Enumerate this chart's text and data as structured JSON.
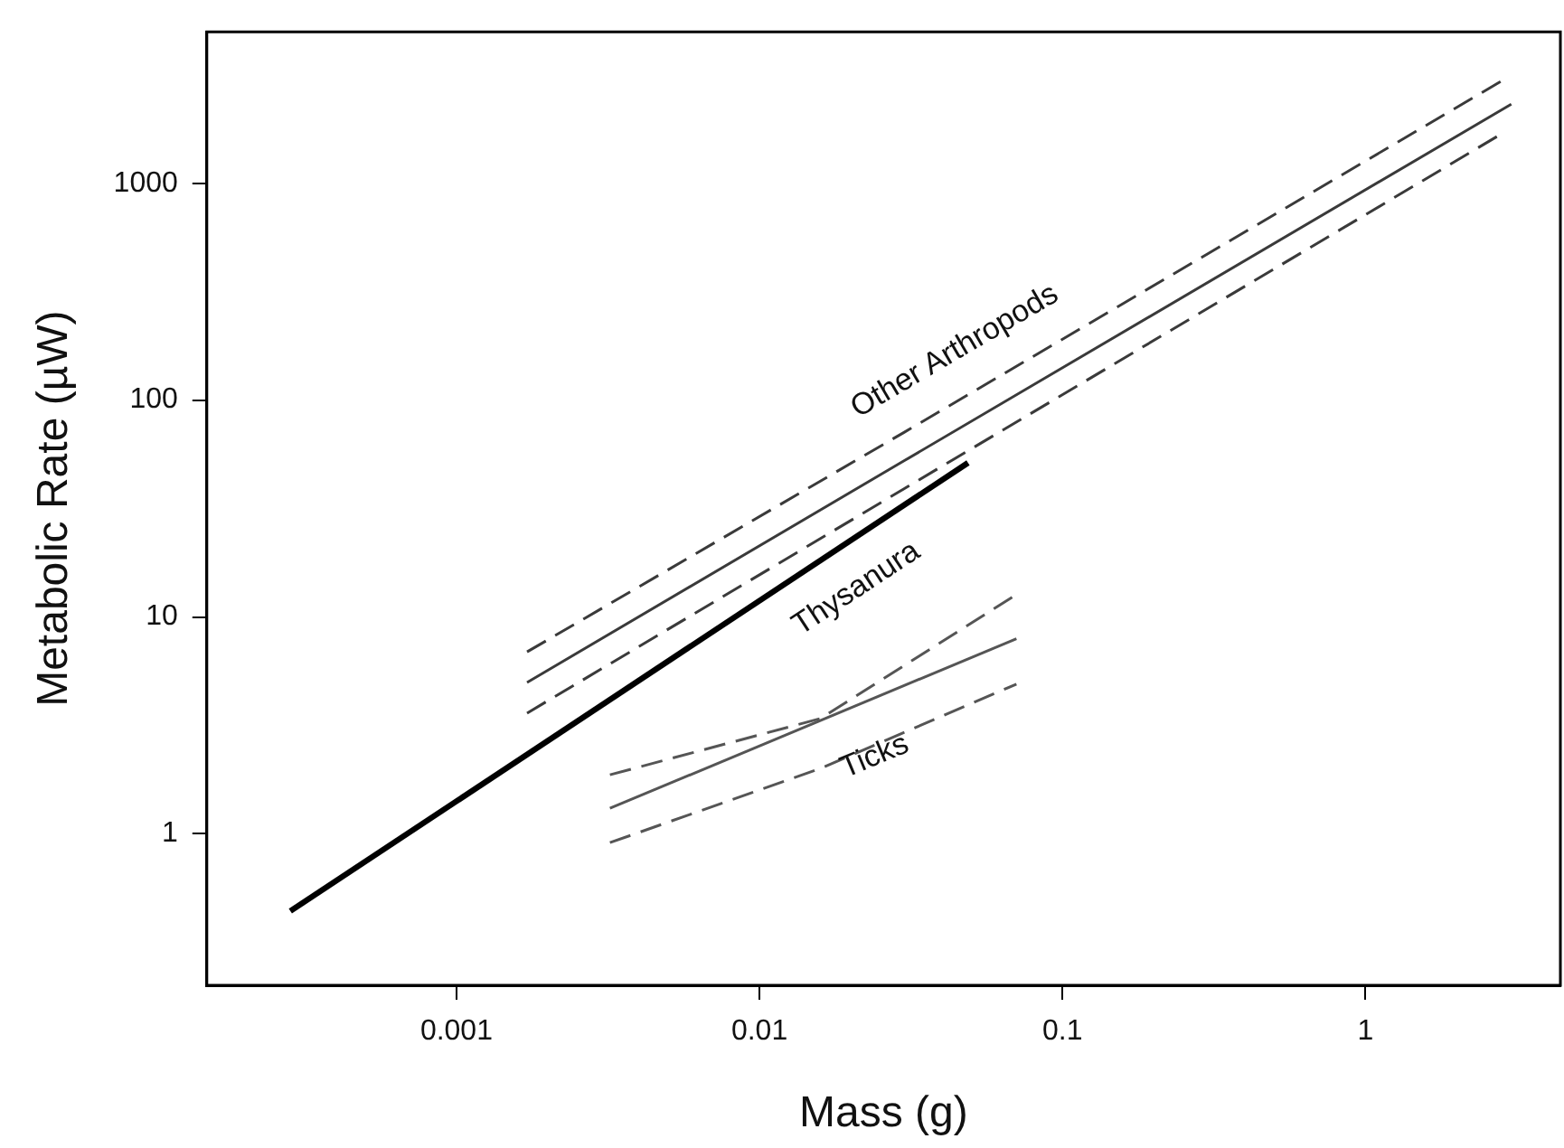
{
  "chart_data": {
    "type": "line",
    "xlabel": "Mass (g)",
    "ylabel": "Metabolic Rate (µW)",
    "log": "xy",
    "grid": false,
    "legend": false,
    "marker": "none",
    "xlim": [
      0.00015,
      4.4
    ],
    "ylim": [
      0.2,
      5000
    ],
    "xticks": [
      0.001,
      0.01,
      0.1,
      1
    ],
    "yticks": [
      1,
      10,
      100,
      1000
    ],
    "series": [
      {
        "color": "#3a3a3a",
        "line_style": "dashed",
        "x": [
          0.00171,
          0.03,
          2.83
        ],
        "values": [
          6.9,
          71,
          2980
        ]
      },
      {
        "name": "Other Arthropods",
        "color": "#3a3a3a",
        "line_style": "solid",
        "x": [
          0.00171,
          0.03,
          3.03
        ],
        "values": [
          4.99,
          52.5,
          2320
        ]
      },
      {
        "color": "#3a3a3a",
        "line_style": "dashed",
        "x": [
          0.00171,
          0.03,
          2.83
        ],
        "values": [
          3.6,
          39,
          1700
        ]
      },
      {
        "name": "Thysanura",
        "color": "#000000",
        "line_style": "solid",
        "x": [
          0.000283,
          0.0488
        ],
        "values": [
          0.44,
          51.4
        ]
      },
      {
        "color": "#555555",
        "line_style": "dashed",
        "x": [
          0.00321,
          0.0159,
          0.0705
        ],
        "values": [
          1.87,
          3.4,
          12.7
        ]
      },
      {
        "name": "Ticks",
        "color": "#555555",
        "line_style": "solid",
        "x": [
          0.00321,
          0.0705
        ],
        "values": [
          1.31,
          7.94
        ]
      },
      {
        "color": "#555555",
        "line_style": "dashed",
        "x": [
          0.00321,
          0.0159,
          0.0705
        ],
        "values": [
          0.91,
          2.0,
          4.9
        ]
      }
    ]
  }
}
